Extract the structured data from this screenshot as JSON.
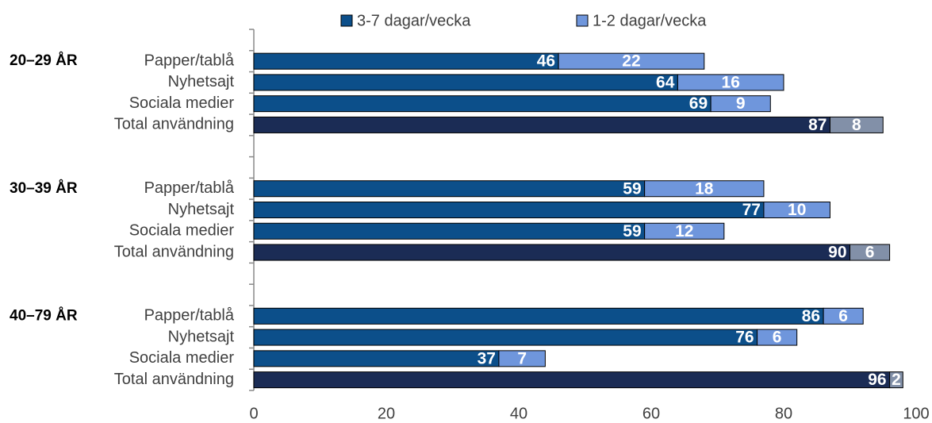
{
  "chart_data": {
    "type": "stacked-barh",
    "groups": [
      "20–29 ÅR",
      "30–39 ÅR",
      "40–79 ÅR"
    ],
    "categories": [
      null,
      "Papper/tablå",
      "Nyhetsajt",
      "Sociala medier",
      "Total användning",
      null,
      null,
      "Papper/tablå",
      "Nyhetsajt",
      "Sociala medier",
      "Total användning",
      null,
      null,
      "Papper/tablå",
      "Nyhetsajt",
      "Sociala medier",
      "Total användning"
    ],
    "series": [
      {
        "name": "3-7 dagar/vecka",
        "color": "#0c4f8a",
        "colors": [
          null,
          "#0c4f8a",
          "#0c4f8a",
          "#0c4f8a",
          "#1b2c55",
          null,
          null,
          "#0c4f8a",
          "#0c4f8a",
          "#0c4f8a",
          "#1b2c55",
          null,
          null,
          "#0c4f8a",
          "#0c4f8a",
          "#0c4f8a",
          "#1b2c55"
        ],
        "values": [
          null,
          46,
          64,
          69,
          87,
          null,
          null,
          59,
          77,
          59,
          90,
          null,
          null,
          86,
          76,
          37,
          96
        ]
      },
      {
        "name": "1-2 dagar/vecka",
        "color": "#6f96dc",
        "colors": [
          null,
          "#6f96dc",
          "#6f96dc",
          "#6f96dc",
          "#8290a8",
          null,
          null,
          "#6f96dc",
          "#6f96dc",
          "#6f96dc",
          "#8290a8",
          null,
          null,
          "#6f96dc",
          "#6f96dc",
          "#6f96dc",
          "#8290a8"
        ],
        "values": [
          null,
          22,
          16,
          9,
          8,
          null,
          null,
          18,
          10,
          12,
          6,
          null,
          null,
          6,
          6,
          7,
          2
        ]
      }
    ],
    "xlim": [
      0,
      100
    ],
    "xticks": [
      0,
      20,
      40,
      60,
      80,
      100
    ],
    "legend": "top"
  }
}
